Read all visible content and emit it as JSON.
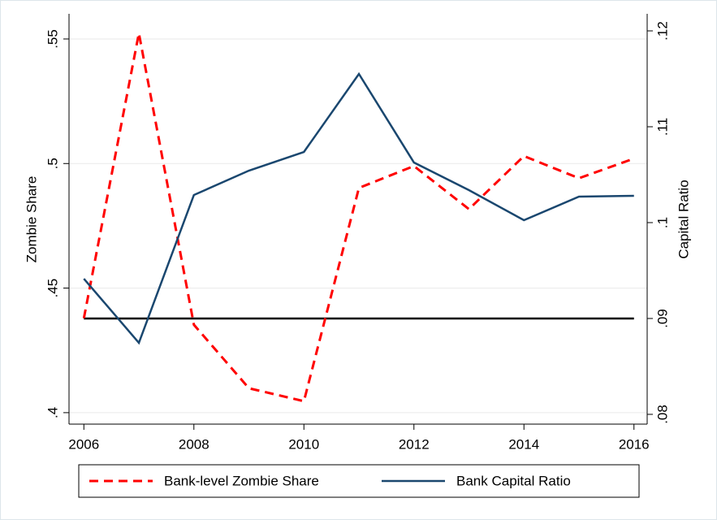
{
  "chart_data": {
    "type": "line",
    "x": [
      2006,
      2007,
      2008,
      2009,
      2010,
      2011,
      2012,
      2013,
      2014,
      2015,
      2016
    ],
    "series": [
      {
        "name": "Bank-level Zombie Share",
        "color": "#ff0000",
        "dash": true,
        "axis": "y",
        "values": [
          0.4379,
          0.5523,
          0.4353,
          0.4098,
          0.4046,
          0.4902,
          0.499,
          0.4817,
          0.503,
          0.4941,
          0.502
        ]
      },
      {
        "name": "Bank Capital Ratio",
        "color": "#1a476f",
        "dash": false,
        "axis": "y2",
        "values": [
          0.09415,
          0.08746,
          0.10288,
          0.10542,
          0.10737,
          0.11551,
          0.10627,
          0.10339,
          0.10025,
          0.10271,
          0.1028
        ]
      }
    ],
    "hline": {
      "value": 0.09,
      "axis": "y2",
      "color": "#000000"
    },
    "ylabel": "Zombie Share",
    "y2label": "Capital Ratio",
    "xlim": [
      2005.73,
      2016.24
    ],
    "xticks": [
      2006,
      2008,
      2010,
      2012,
      2014,
      2016
    ],
    "ylim": [
      0.3954,
      0.5601
    ],
    "yticks": [
      {
        "value": 0.4,
        "label": ".4"
      },
      {
        "value": 0.45,
        "label": ".45"
      },
      {
        "value": 0.5,
        "label": ".5"
      },
      {
        "value": 0.55,
        "label": ".55"
      }
    ],
    "y2lim": [
      0.07898,
      0.12178
    ],
    "y2ticks": [
      {
        "value": 0.08,
        "label": ".08"
      },
      {
        "value": 0.09,
        "label": ".09"
      },
      {
        "value": 0.1,
        "label": ".1"
      },
      {
        "value": 0.11,
        "label": ".11"
      },
      {
        "value": 0.12,
        "label": ".12"
      }
    ],
    "grid": true,
    "legend": "bottom"
  }
}
